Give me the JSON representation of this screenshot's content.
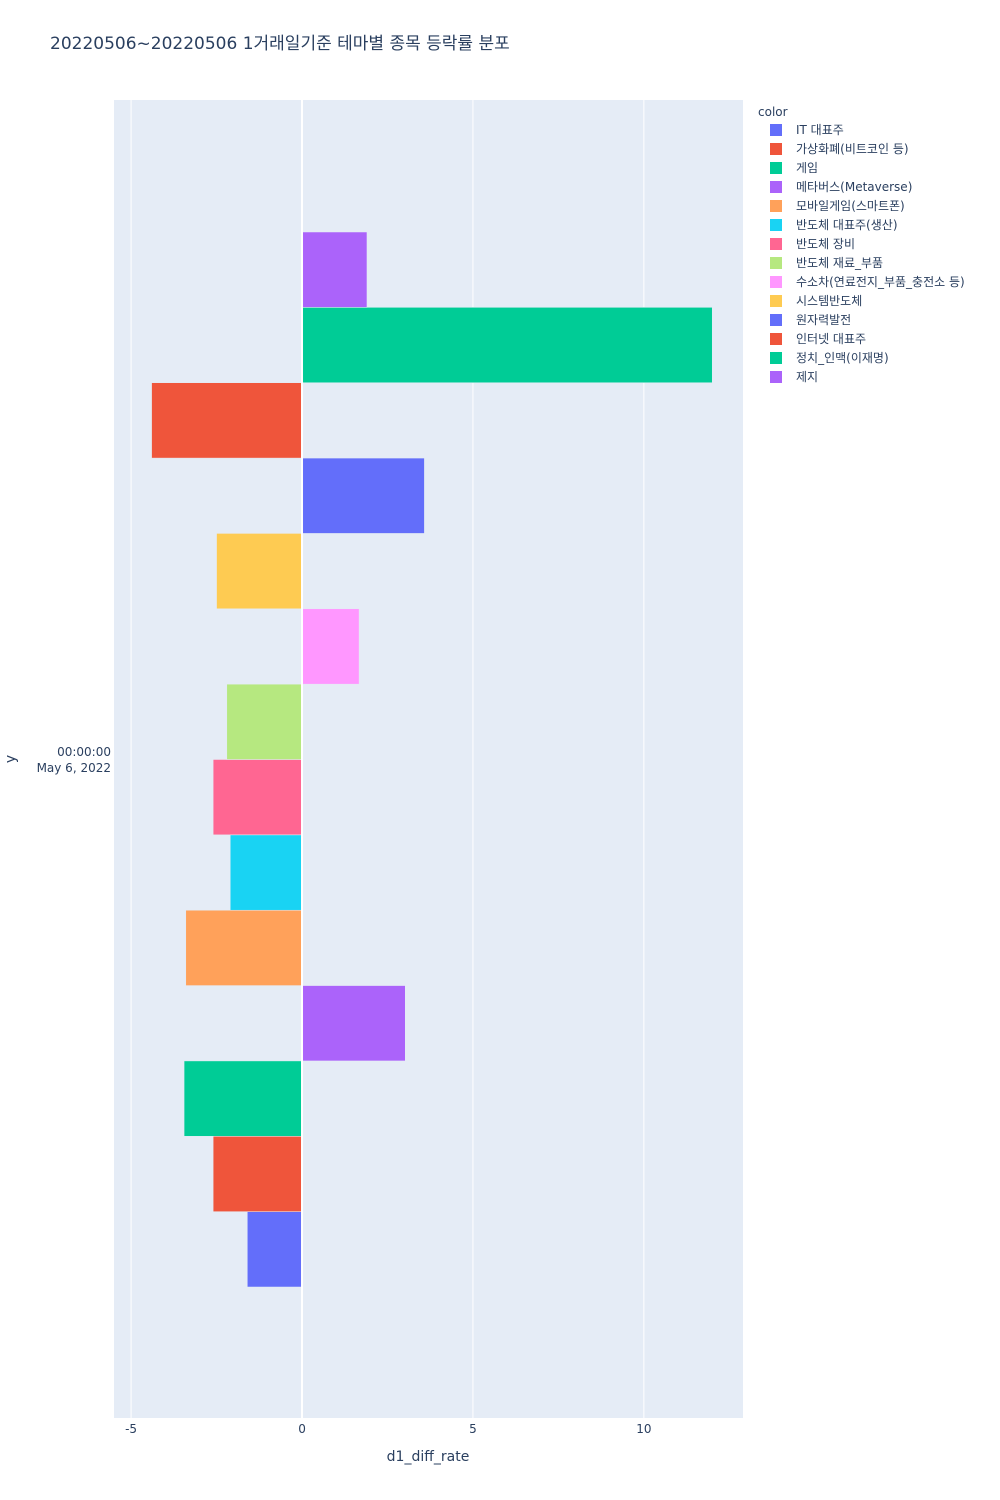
{
  "chart_data": {
    "type": "bar",
    "orientation": "horizontal",
    "barmode": "group",
    "title": "20220506~20220506 1거래일기준 테마별 종목 등락률 분포",
    "xlabel": "d1_diff_rate",
    "ylabel": "y",
    "xlim": [
      -5.5,
      12.9
    ],
    "xticks": [
      -5,
      0,
      5,
      10
    ],
    "y_category_line1": "00:00:00",
    "y_category_line2": "May 6, 2022",
    "grid": true,
    "legend_title": "color",
    "legend_position": "right",
    "series": [
      {
        "name": "IT 대표주",
        "color": "#636efa",
        "value": -1.6
      },
      {
        "name": "가상화폐(비트코인 등)",
        "color": "#EF553B",
        "value": -2.6
      },
      {
        "name": "게임",
        "color": "#00cc96",
        "value": -3.45
      },
      {
        "name": "메타버스(Metaverse)",
        "color": "#ab63fa",
        "value": 3.02
      },
      {
        "name": "모바일게임(스마트폰)",
        "color": "#FFA15A",
        "value": -3.4
      },
      {
        "name": "반도체 대표주(생산)",
        "color": "#19d3f3",
        "value": -2.1
      },
      {
        "name": "반도체 장비",
        "color": "#FF6692",
        "value": -2.6
      },
      {
        "name": "반도체 재료_부품",
        "color": "#B6E880",
        "value": -2.2
      },
      {
        "name": "수소차(연료전지_부품_충전소 등)",
        "color": "#FF97FF",
        "value": 1.67
      },
      {
        "name": "시스템반도체",
        "color": "#FECB52",
        "value": -2.5
      },
      {
        "name": "원자력발전",
        "color": "#636efa",
        "value": 3.58
      },
      {
        "name": "인터넷 대표주",
        "color": "#EF553B",
        "value": -4.4
      },
      {
        "name": "정치_인맥(이재명)",
        "color": "#00cc96",
        "value": 12.0
      },
      {
        "name": "제지",
        "color": "#ab63fa",
        "value": 1.9
      }
    ]
  }
}
